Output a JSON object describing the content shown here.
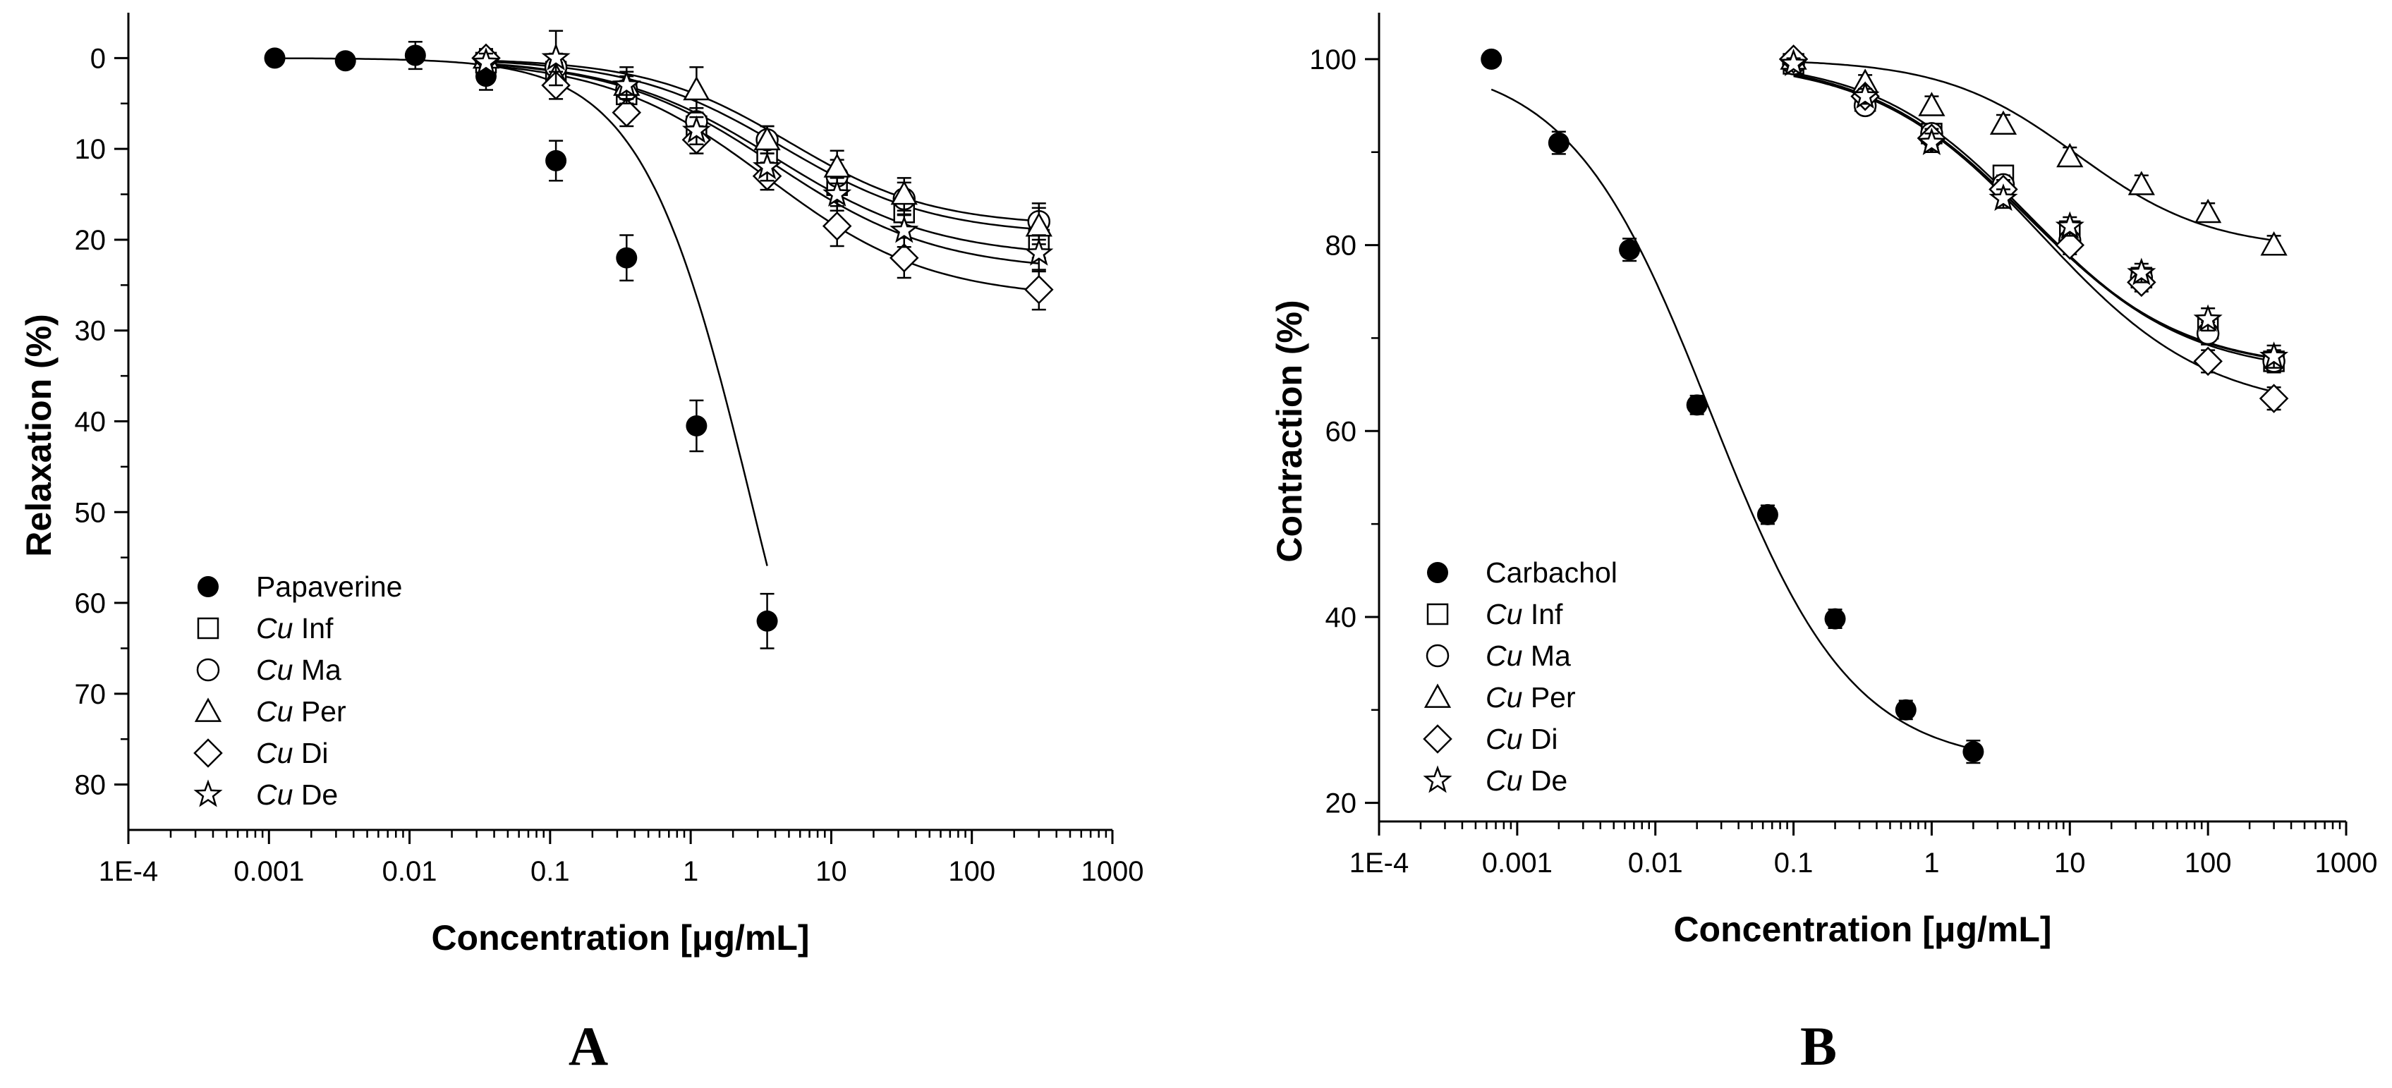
{
  "chart_data": [
    {
      "type": "scatter",
      "panel_label": "A",
      "xlabel": "Concentration [μg/mL]",
      "ylabel": "Relaxation (%)",
      "x_scale": "log",
      "xlim": [
        0.0001,
        1000
      ],
      "ylim": [
        85,
        -5
      ],
      "y_inverted": true,
      "x_ticks": [
        0.0001,
        0.001,
        0.01,
        0.1,
        1,
        10,
        100,
        1000
      ],
      "x_tick_labels": [
        "1E-4",
        "0.001",
        "0.01",
        "0.1",
        "1",
        "10",
        "100",
        "1000"
      ],
      "y_ticks": [
        0,
        10,
        20,
        30,
        40,
        50,
        60,
        70,
        80
      ],
      "y_tick_labels": [
        "0",
        "10",
        "20",
        "30",
        "40",
        "50",
        "60",
        "70",
        "80"
      ],
      "grid": false,
      "legend_position": "bottom-left",
      "series": [
        {
          "name": "Papaverine",
          "name_prefix": "",
          "name_italic": "",
          "name_rest": "Papaverine",
          "marker": "filled-circle",
          "x": [
            0.0011,
            0.0035,
            0.011,
            0.035,
            0.11,
            0.35,
            1.1,
            3.5
          ],
          "y": [
            0,
            0.3,
            -0.3,
            2,
            11.3,
            22,
            40.5,
            62
          ],
          "err": [
            0.5,
            0.5,
            1.5,
            1.5,
            2.2,
            2.5,
            2.8,
            3
          ],
          "fit": {
            "top": 0,
            "bottom": 100,
            "logEC50": 0.45,
            "hill": 1.1,
            "xmin": 0.001,
            "xmax": 3.5
          }
        },
        {
          "name": "Cu Inf",
          "name_prefix": "",
          "name_italic": "Cu",
          "name_rest": " Inf",
          "marker": "open-square",
          "x": [
            0.035,
            0.11,
            0.35,
            1.1,
            3.5,
            11,
            33,
            300
          ],
          "y": [
            0.5,
            1.5,
            4,
            7.5,
            10.5,
            14,
            17,
            20
          ],
          "err": [
            1,
            1.5,
            1.5,
            1.5,
            1.5,
            1.8,
            1.8,
            2
          ],
          "fit": {
            "top": 0,
            "bottom": 22,
            "logEC50": 0.6,
            "hill": 0.75,
            "xmin": 0.035,
            "xmax": 300
          }
        },
        {
          "name": "Cu Ma",
          "name_prefix": "",
          "name_italic": "Cu",
          "name_rest": " Ma",
          "marker": "open-circle",
          "x": [
            0.035,
            0.11,
            0.35,
            1.1,
            3.5,
            11,
            33,
            300
          ],
          "y": [
            0.2,
            1,
            3.5,
            7,
            9,
            13,
            15.5,
            18
          ],
          "err": [
            1,
            1.5,
            1.5,
            1.5,
            1.5,
            1.8,
            1.8,
            2
          ],
          "fit": {
            "top": 0,
            "bottom": 19.5,
            "logEC50": 0.65,
            "hill": 0.8,
            "xmin": 0.035,
            "xmax": 300
          }
        },
        {
          "name": "Cu Per",
          "name_prefix": "",
          "name_italic": "Cu",
          "name_rest": " Per",
          "marker": "open-triangle",
          "x": [
            0.035,
            0.11,
            0.35,
            1.1,
            3.5,
            11,
            33,
            300
          ],
          "y": [
            0,
            2,
            3,
            3.5,
            9,
            12,
            15,
            18.5
          ],
          "err": [
            1,
            1.5,
            1.5,
            2.5,
            1.5,
            1.8,
            1.8,
            2
          ],
          "fit": {
            "top": 0,
            "bottom": 18.5,
            "logEC50": 0.7,
            "hill": 0.85,
            "xmin": 0.035,
            "xmax": 300
          }
        },
        {
          "name": "Cu Di",
          "name_prefix": "",
          "name_italic": "Cu",
          "name_rest": " Di",
          "marker": "open-diamond",
          "x": [
            0.035,
            0.11,
            0.35,
            1.1,
            3.5,
            11,
            33,
            300
          ],
          "y": [
            0,
            3,
            6,
            9,
            13,
            18.5,
            22,
            25.5
          ],
          "err": [
            1,
            1.5,
            1.5,
            1.5,
            1.5,
            2.2,
            2.2,
            2.2
          ],
          "fit": {
            "top": 0,
            "bottom": 26.5,
            "logEC50": 0.55,
            "hill": 0.75,
            "xmin": 0.035,
            "xmax": 300
          }
        },
        {
          "name": "Cu De",
          "name_prefix": "",
          "name_italic": "Cu",
          "name_rest": " De",
          "marker": "open-star",
          "x": [
            0.035,
            0.11,
            0.35,
            1.1,
            3.5,
            11,
            33,
            300
          ],
          "y": [
            0.5,
            0,
            3,
            8,
            12,
            15,
            19,
            21.5
          ],
          "err": [
            1,
            3,
            2,
            1.5,
            1.5,
            1.8,
            1.8,
            2
          ],
          "fit": {
            "top": 0,
            "bottom": 23.5,
            "logEC50": 0.6,
            "hill": 0.75,
            "xmin": 0.035,
            "xmax": 300
          }
        }
      ]
    },
    {
      "type": "scatter",
      "panel_label": "B",
      "xlabel": "Concentration [μg/mL]",
      "ylabel": "Contraction (%)",
      "x_scale": "log",
      "xlim": [
        0.0001,
        1000
      ],
      "ylim": [
        18,
        105
      ],
      "y_inverted": false,
      "x_ticks": [
        0.0001,
        0.001,
        0.01,
        0.1,
        1,
        10,
        100,
        1000
      ],
      "x_tick_labels": [
        "1E-4",
        "0.001",
        "0.01",
        "0.1",
        "1",
        "10",
        "100",
        "1000"
      ],
      "y_ticks": [
        20,
        40,
        60,
        80,
        100
      ],
      "y_tick_labels": [
        "20",
        "40",
        "60",
        "80",
        "100"
      ],
      "grid": false,
      "legend_position": "bottom-left",
      "series": [
        {
          "name": "Carbachol",
          "name_prefix": "",
          "name_italic": "",
          "name_rest": "Carbachol",
          "marker": "filled-circle",
          "x": [
            0.00065,
            0.002,
            0.0065,
            0.02,
            0.065,
            0.2,
            0.65,
            2
          ],
          "y": [
            100,
            91,
            79.5,
            62.8,
            51,
            39.8,
            30,
            25.5
          ],
          "err": [
            0.5,
            1.2,
            1.2,
            1,
            1,
            1,
            1,
            1.2
          ],
          "fit": {
            "top": 100,
            "bottom": 24,
            "logEC50": -1.6,
            "hill": 0.85,
            "xmin": 0.00065,
            "xmax": 2
          }
        },
        {
          "name": "Cu Inf",
          "name_prefix": "",
          "name_italic": "Cu",
          "name_rest": " Inf",
          "marker": "open-square",
          "x": [
            0.1,
            0.33,
            1,
            3.3,
            10,
            33,
            100,
            300
          ],
          "y": [
            99.5,
            95.5,
            92,
            87.5,
            81.5,
            76.5,
            71,
            67.5
          ],
          "err": [
            0.6,
            0.8,
            1,
            1,
            1,
            1,
            1.2,
            1.2
          ],
          "fit": {
            "top": 100,
            "bottom": 66,
            "logEC50": 0.7,
            "hill": 0.75,
            "xmin": 0.1,
            "xmax": 300
          }
        },
        {
          "name": "Cu Ma",
          "name_prefix": "",
          "name_italic": "Cu",
          "name_rest": " Ma",
          "marker": "open-circle",
          "x": [
            0.1,
            0.33,
            1,
            3.3,
            10,
            33,
            100,
            300
          ],
          "y": [
            99.5,
            95,
            92,
            86.5,
            80.5,
            76.5,
            70.5,
            67.5
          ],
          "err": [
            0.6,
            0.8,
            1,
            1,
            1,
            1,
            1.2,
            1.2
          ],
          "fit": {
            "top": 100,
            "bottom": 66.5,
            "logEC50": 0.7,
            "hill": 0.78,
            "xmin": 0.1,
            "xmax": 300
          }
        },
        {
          "name": "Cu Per",
          "name_prefix": "",
          "name_italic": "Cu",
          "name_rest": " Per",
          "marker": "open-triangle",
          "x": [
            0.1,
            0.33,
            1,
            3.3,
            10,
            33,
            100,
            300
          ],
          "y": [
            100,
            97.5,
            95,
            93,
            89.5,
            86.5,
            83.5,
            80
          ],
          "err": [
            0.5,
            0.8,
            1,
            1,
            1,
            1,
            1,
            1
          ],
          "fit": {
            "top": 100,
            "bottom": 79.5,
            "logEC50": 1.05,
            "hill": 0.9,
            "xmin": 0.1,
            "xmax": 300
          }
        },
        {
          "name": "Cu Di",
          "name_prefix": "",
          "name_italic": "Cu",
          "name_rest": " Di",
          "marker": "open-diamond",
          "x": [
            0.1,
            0.33,
            1,
            3.3,
            10,
            33,
            100,
            300
          ],
          "y": [
            100,
            96,
            91.5,
            86,
            80,
            76,
            67.5,
            63.5
          ],
          "err": [
            0.6,
            0.8,
            1,
            1,
            1,
            1,
            1.2,
            1.2
          ],
          "fit": {
            "top": 100,
            "bottom": 62,
            "logEC50": 0.8,
            "hill": 0.72,
            "xmin": 0.1,
            "xmax": 300
          }
        },
        {
          "name": "Cu De",
          "name_prefix": "",
          "name_italic": "Cu",
          "name_rest": " De",
          "marker": "open-star",
          "x": [
            0.1,
            0.33,
            1,
            3.3,
            10,
            33,
            100,
            300
          ],
          "y": [
            99.5,
            96,
            91,
            85,
            82,
            77,
            72,
            68
          ],
          "err": [
            0.6,
            0.8,
            1,
            1,
            1,
            1,
            1.2,
            1.2
          ],
          "fit": {
            "top": 100,
            "bottom": 66.5,
            "logEC50": 0.68,
            "hill": 0.76,
            "xmin": 0.1,
            "xmax": 300
          }
        }
      ]
    }
  ]
}
